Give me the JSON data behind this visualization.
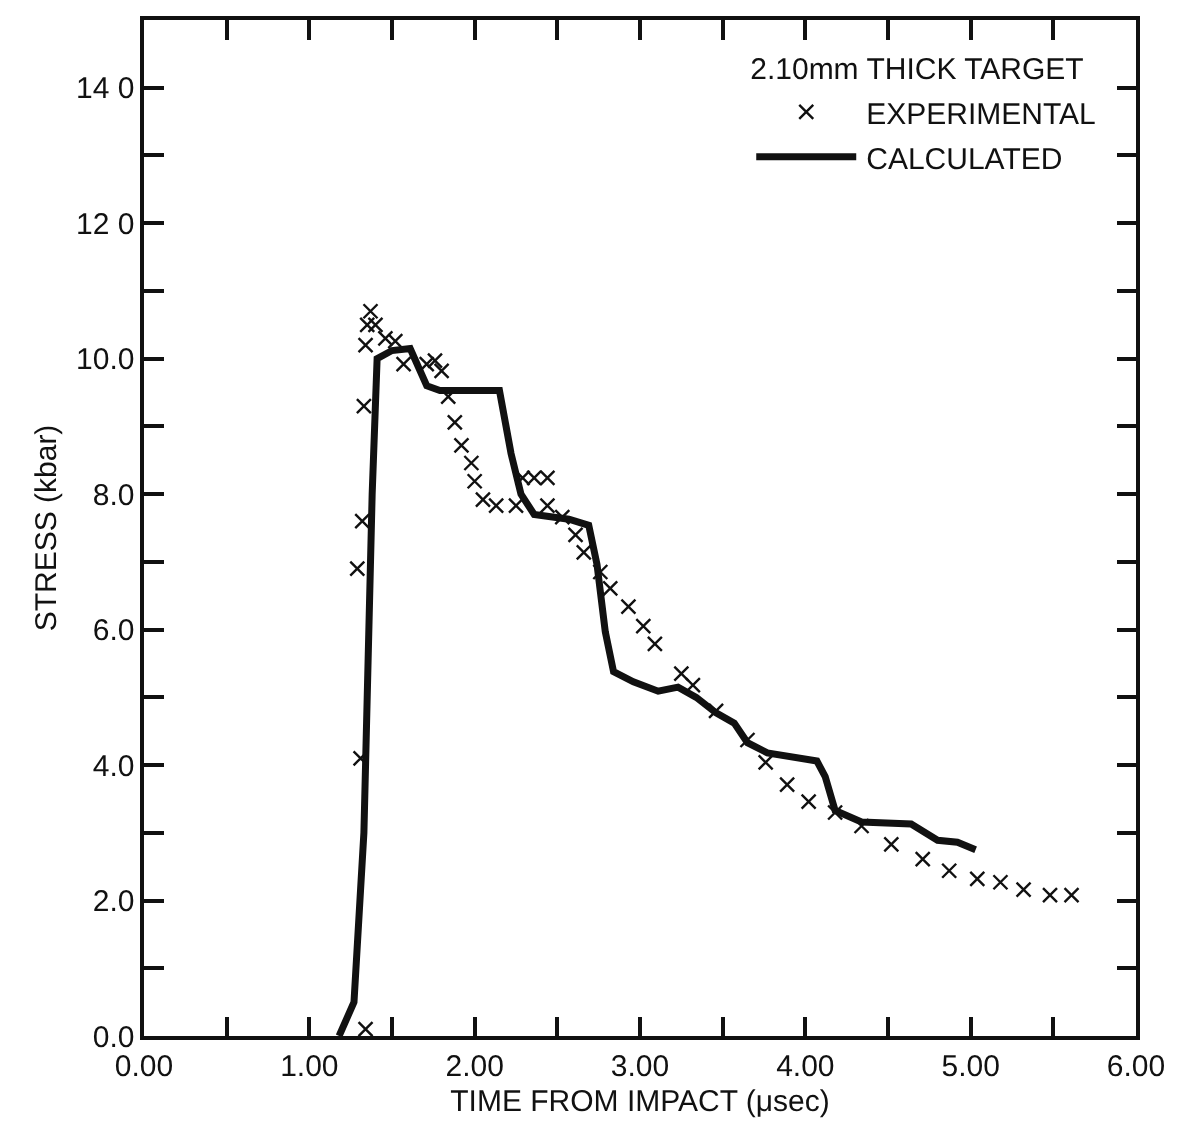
{
  "chart_data": {
    "type": "scatter",
    "xlabel": "TIME FROM IMPACT (μsec)",
    "ylabel": "STRESS (kbar)",
    "legend_title": "2.10mm THICK TARGET",
    "legend": "top right",
    "grid": false,
    "xlim": [
      0,
      6
    ],
    "xticks": [
      {
        "value": 0,
        "label": "0.00"
      },
      {
        "value": 0.5,
        "label": null
      },
      {
        "value": 1,
        "label": "1.00"
      },
      {
        "value": 1.5,
        "label": null
      },
      {
        "value": 2,
        "label": "2.00"
      },
      {
        "value": 2.5,
        "label": null
      },
      {
        "value": 3,
        "label": "3.00"
      },
      {
        "value": 3.5,
        "label": null
      },
      {
        "value": 4,
        "label": "4.00"
      },
      {
        "value": 4.5,
        "label": null
      },
      {
        "value": 5,
        "label": "5.00"
      },
      {
        "value": 5.5,
        "label": null
      },
      {
        "value": 6,
        "label": "6.00"
      }
    ],
    "ylim": [
      0,
      15
    ],
    "yticks": [
      {
        "value": 0,
        "label": "0.0"
      },
      {
        "value": 1,
        "label": null
      },
      {
        "value": 2,
        "label": "2.0"
      },
      {
        "value": 3,
        "label": null
      },
      {
        "value": 4,
        "label": "4.0"
      },
      {
        "value": 5,
        "label": null
      },
      {
        "value": 6,
        "label": "6.0"
      },
      {
        "value": 7,
        "label": null
      },
      {
        "value": 8,
        "label": "8.0"
      },
      {
        "value": 9,
        "label": null
      },
      {
        "value": 10,
        "label": "10.0"
      },
      {
        "value": 11,
        "label": null
      },
      {
        "value": 12,
        "label": "12 0"
      },
      {
        "value": 13,
        "label": null
      },
      {
        "value": 14,
        "label": "14 0"
      }
    ],
    "series": [
      {
        "name": "EXPERIMENTAL",
        "marker": "cross",
        "color": "#111111",
        "x": [
          1.34,
          1.31,
          1.29,
          1.32,
          1.33,
          1.34,
          1.35,
          1.37,
          1.4,
          1.46,
          1.52,
          1.57,
          1.71,
          1.76,
          1.8,
          1.84,
          1.88,
          1.92,
          1.98,
          2.0,
          2.05,
          2.13,
          2.25,
          2.29,
          2.36,
          2.44,
          2.44,
          2.53,
          2.61,
          2.66,
          2.76,
          2.82,
          2.93,
          3.02,
          3.09,
          3.25,
          3.32,
          3.46,
          3.65,
          3.76,
          3.89,
          4.02,
          4.18,
          4.34,
          4.52,
          4.71,
          4.87,
          5.04,
          5.18,
          5.32,
          5.48,
          5.61
        ],
        "values": [
          0.1,
          4.1,
          6.9,
          7.6,
          9.3,
          10.2,
          10.5,
          10.7,
          10.5,
          10.3,
          10.26,
          9.92,
          9.92,
          9.97,
          9.82,
          9.44,
          9.06,
          8.72,
          8.46,
          8.19,
          7.92,
          7.83,
          7.83,
          8.24,
          8.24,
          8.24,
          7.83,
          7.66,
          7.4,
          7.14,
          6.85,
          6.61,
          6.34,
          6.05,
          5.79,
          5.35,
          5.18,
          4.8,
          4.37,
          4.04,
          3.71,
          3.46,
          3.3,
          3.1,
          2.83,
          2.61,
          2.44,
          2.32,
          2.27,
          2.16,
          2.08,
          2.08
        ]
      },
      {
        "name": "CALCULATED",
        "type": "line",
        "marker": "none",
        "line_style": "solid",
        "color": "#111111",
        "x": [
          1.18,
          1.27,
          1.33,
          1.38,
          1.41,
          1.5,
          1.61,
          1.71,
          1.79,
          2.15,
          2.22,
          2.28,
          2.36,
          2.57,
          2.69,
          2.74,
          2.79,
          2.84,
          2.96,
          3.11,
          3.23,
          3.34,
          3.46,
          3.57,
          3.65,
          3.77,
          4.07,
          4.12,
          4.18,
          4.34,
          4.64,
          4.8,
          4.92,
          5.03
        ],
        "values": [
          0,
          0.5,
          3,
          8,
          10.0,
          10.12,
          10.15,
          9.6,
          9.53,
          9.53,
          8.6,
          8.0,
          7.7,
          7.63,
          7.54,
          6.96,
          5.97,
          5.38,
          5.23,
          5.09,
          5.15,
          5.0,
          4.77,
          4.62,
          4.33,
          4.18,
          4.06,
          3.83,
          3.33,
          3.16,
          3.13,
          2.89,
          2.86,
          2.75
        ]
      }
    ]
  }
}
